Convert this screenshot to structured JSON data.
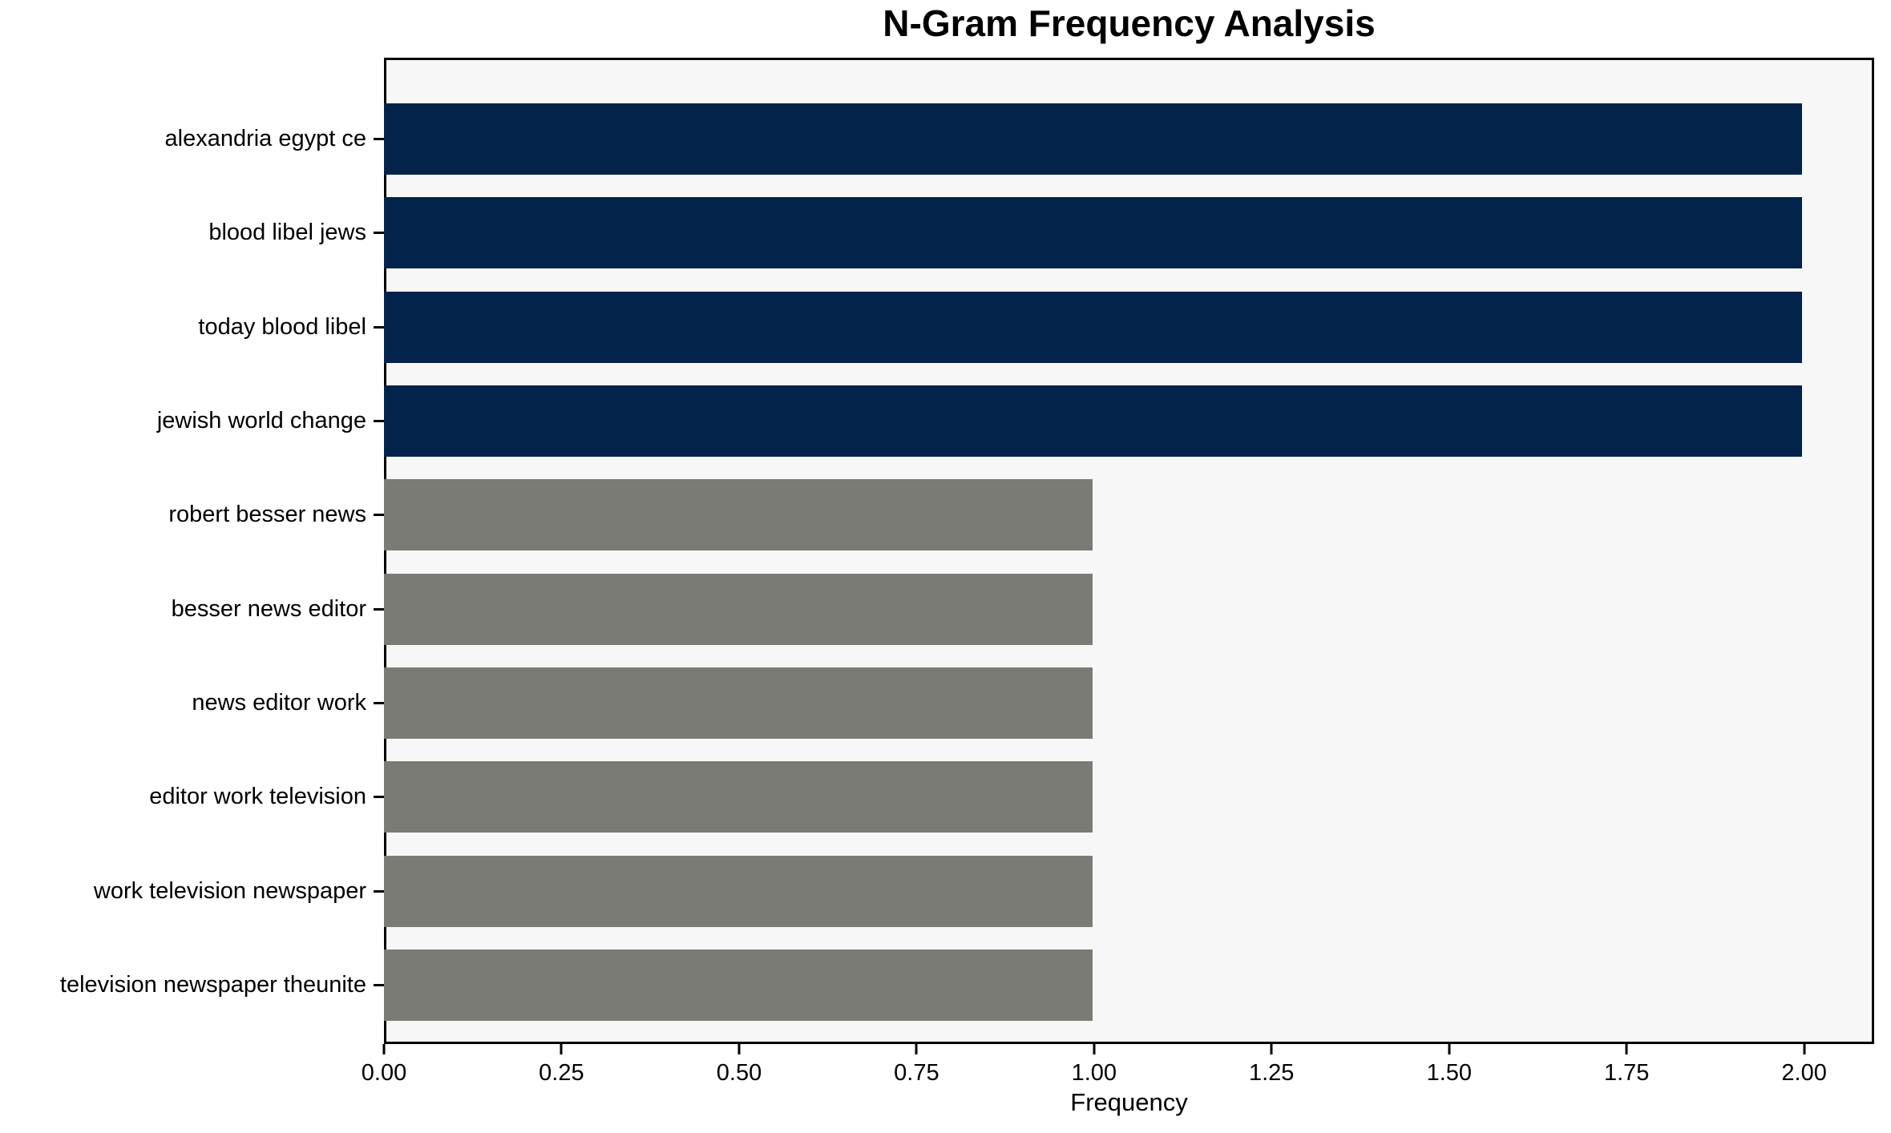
{
  "figure": {
    "background": "#ffffff",
    "plot_background": "#f7f7f8",
    "axis_color": "#000000"
  },
  "chart_data": {
    "type": "bar",
    "orientation": "horizontal",
    "title": "N-Gram Frequency Analysis",
    "xlabel": "Frequency",
    "ylabel": "",
    "categories": [
      "alexandria egypt ce",
      "blood libel jews",
      "today blood libel",
      "jewish world change",
      "robert besser news",
      "besser news editor",
      "news editor work",
      "editor work television",
      "work television newspaper",
      "television newspaper theunite"
    ],
    "values": [
      2,
      2,
      2,
      2,
      1,
      1,
      1,
      1,
      1,
      1
    ],
    "bar_colors": [
      "#03234a",
      "#03234a",
      "#03234a",
      "#03234a",
      "#7b7b76",
      "#7b7b76",
      "#7b7b76",
      "#7b7b76",
      "#7b7b76",
      "#7b7b76"
    ],
    "highlight_color": "#03234a",
    "base_color": "#7b7b76",
    "xlim": [
      0,
      2.0986
    ],
    "xticks": [
      0,
      0.25,
      0.5,
      0.75,
      1.0,
      1.25,
      1.5,
      1.75,
      2.0
    ],
    "xtick_labels": [
      "0.00",
      "0.25",
      "0.50",
      "0.75",
      "1.00",
      "1.25",
      "1.50",
      "1.75",
      "2.00"
    ],
    "grid": false,
    "legend": null
  }
}
